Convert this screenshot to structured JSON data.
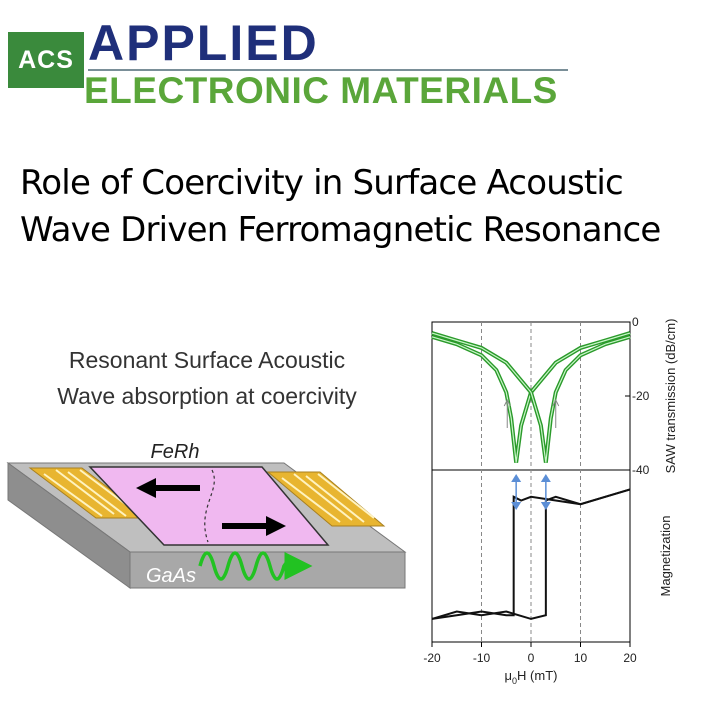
{
  "journal": {
    "badge": "ACS",
    "name_line1": "APPLIED",
    "name_line2": "ELECTRONIC MATERIALS"
  },
  "article": {
    "title": "Role of Coercivity in Surface Acoustic Wave Driven Ferromagnetic Resonance"
  },
  "schematic": {
    "caption_line1": "Resonant Surface Acoustic",
    "caption_line2": "Wave absorption at coercivity",
    "film_label": "FeRh",
    "substrate_label": "GaAs"
  },
  "chart_data": [
    {
      "type": "line",
      "ylabel": "SAW transmission (dB/cm)",
      "xlim": [
        -20,
        20
      ],
      "ylim": [
        -40,
        0
      ],
      "yticks": [
        0,
        -20,
        -40
      ],
      "ytick_labels": [
        "0",
        "-20",
        "-40"
      ],
      "grid": "dashed vertical at x = -10, 0, 10",
      "series": [
        {
          "x": [
            -20,
            -15,
            -10,
            -7,
            -5,
            -4,
            -3,
            -2,
            0,
            5,
            10,
            15,
            20
          ],
          "y": [
            -4,
            -6,
            -9,
            -13,
            -19,
            -26,
            -38,
            -28,
            -19,
            -11,
            -7,
            -5,
            -3
          ]
        },
        {
          "x": [
            -20,
            -15,
            -10,
            -5,
            0,
            2,
            3,
            4,
            5,
            7,
            10,
            15,
            20
          ],
          "y": [
            -3,
            -5,
            -7,
            -11,
            -19,
            -28,
            -38,
            -26,
            -19,
            -13,
            -9,
            -6,
            -4
          ]
        }
      ],
      "annotations": [
        "arrow up near x=-5",
        "arrow up near x=5"
      ]
    },
    {
      "type": "line",
      "xlabel": "μ0H (mT)",
      "ylabel": "Magnetization",
      "xlim": [
        -20,
        20
      ],
      "xticks": [
        -20,
        -10,
        0,
        10,
        20
      ],
      "xtick_labels": [
        "-20",
        "-10",
        "0",
        "10",
        "20"
      ],
      "grid": "dashed vertical at x = -10, 0, 10",
      "series": [
        {
          "x": [
            -20,
            -15,
            -10,
            -5,
            -3.5,
            -3.5,
            -2,
            0,
            5,
            10,
            15,
            20
          ],
          "y": [
            -0.85,
            -0.8,
            -0.75,
            -0.8,
            -0.8,
            0.8,
            0.75,
            0.8,
            0.75,
            0.7,
            0.8,
            0.9
          ]
        },
        {
          "x": [
            20,
            15,
            10,
            5,
            3,
            3,
            0,
            -5,
            -10,
            -15,
            -20
          ],
          "y": [
            0.9,
            0.8,
            0.7,
            0.8,
            0.75,
            -0.8,
            -0.85,
            -0.75,
            -0.8,
            -0.75,
            -0.85
          ]
        }
      ],
      "annotations": [
        "double arrow at coercive field x=-3",
        "double arrow at coercive field x=3"
      ]
    }
  ]
}
